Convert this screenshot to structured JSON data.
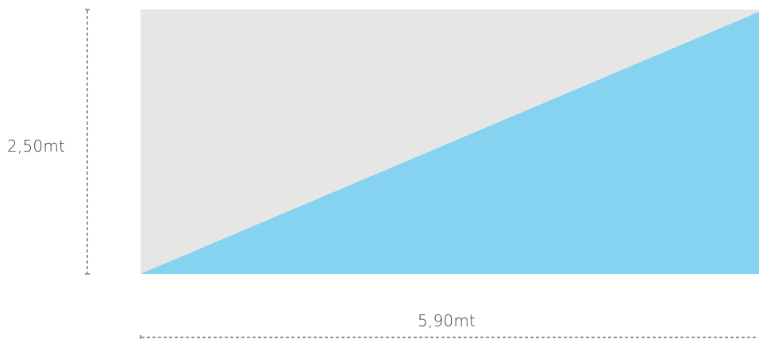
{
  "dimensions": {
    "height_label": "2,50mt",
    "width_label": "5,90mt"
  },
  "colors": {
    "background_fill": "#e6e7e5",
    "triangle_fill": "#85d2f1",
    "dimension_line": "#555555",
    "text": "#3a3a3a"
  }
}
